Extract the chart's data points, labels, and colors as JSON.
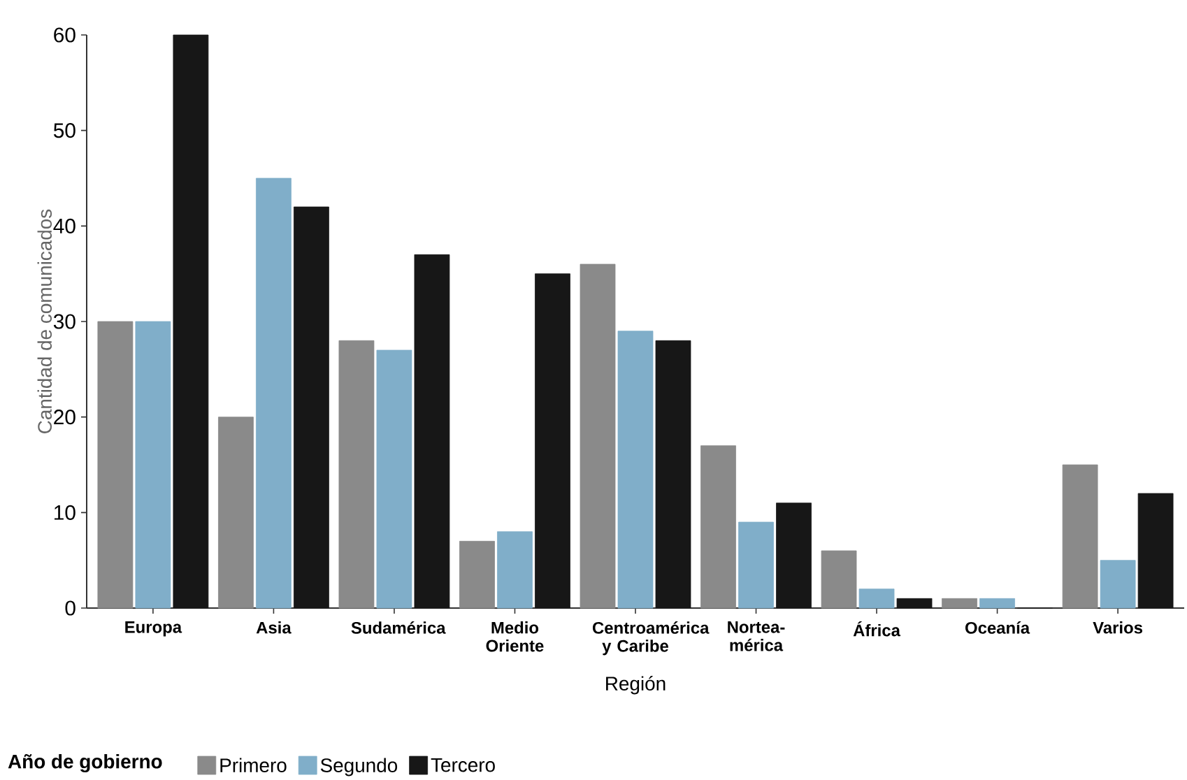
{
  "chart_data": {
    "type": "bar",
    "xlabel": "Región",
    "ylabel": "Cantidad de comunicados",
    "legend_title": "Año de gobierno",
    "legend": "bottom left",
    "categories": [
      "Europa",
      "Asia",
      "Sudamérica",
      "Medio Oriente",
      "Centroamérica y Caribe",
      "Nortea-mérica",
      "África",
      "Oceanía",
      "Varios"
    ],
    "series": [
      {
        "name": "Primero",
        "color": "#8a8a8a",
        "values": [
          30,
          20,
          28,
          7,
          36,
          17,
          6,
          1,
          15
        ]
      },
      {
        "name": "Segundo",
        "color": "#80aec9",
        "values": [
          30,
          45,
          27,
          8,
          29,
          9,
          2,
          1,
          5
        ]
      },
      {
        "name": "Tercero",
        "color": "#171717",
        "values": [
          60,
          42,
          37,
          35,
          28,
          11,
          1,
          0,
          12
        ]
      }
    ],
    "ylim": [
      0,
      60
    ],
    "yticks": [
      0,
      10,
      20,
      30,
      40,
      50,
      60
    ]
  }
}
